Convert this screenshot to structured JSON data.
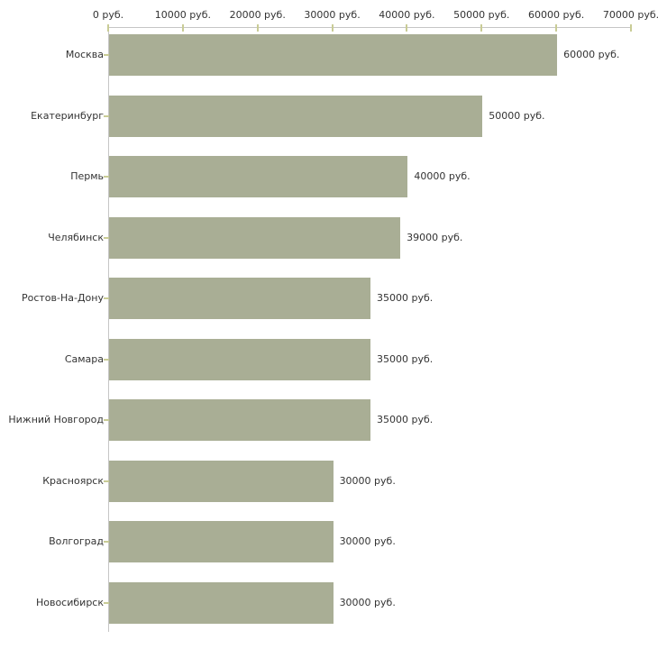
{
  "chart_data": {
    "type": "bar",
    "orientation": "horizontal",
    "categories": [
      "Москва",
      "Екатеринбург",
      "Пермь",
      "Челябинск",
      "Ростов-На-Дону",
      "Самара",
      "Нижний Новгород",
      "Красноярск",
      "Волгоград",
      "Новосибирск"
    ],
    "values": [
      60000,
      50000,
      40000,
      39000,
      35000,
      35000,
      35000,
      30000,
      30000,
      30000
    ],
    "value_labels": [
      "60000 руб.",
      "50000 руб.",
      "40000 руб.",
      "39000 руб.",
      "35000 руб.",
      "35000 руб.",
      "35000 руб.",
      "30000 руб.",
      "30000 руб.",
      "30000 руб."
    ],
    "x_axis": {
      "position": "top",
      "min": 0,
      "max": 70000,
      "tick_values": [
        0,
        10000,
        20000,
        30000,
        40000,
        50000,
        60000,
        70000
      ],
      "tick_labels": [
        "0 руб.",
        "10000 руб.",
        "20000 руб.",
        "30000 руб.",
        "40000 руб.",
        "50000 руб.",
        "60000 руб.",
        "70000 руб."
      ]
    },
    "grid": "off",
    "legend": "none",
    "colors": {
      "bar": "#a9ae95",
      "axis_line": "#c6c6c6",
      "tick_mark": "#c9cc96",
      "label_text": "#333333",
      "background": "#ffffff"
    }
  }
}
